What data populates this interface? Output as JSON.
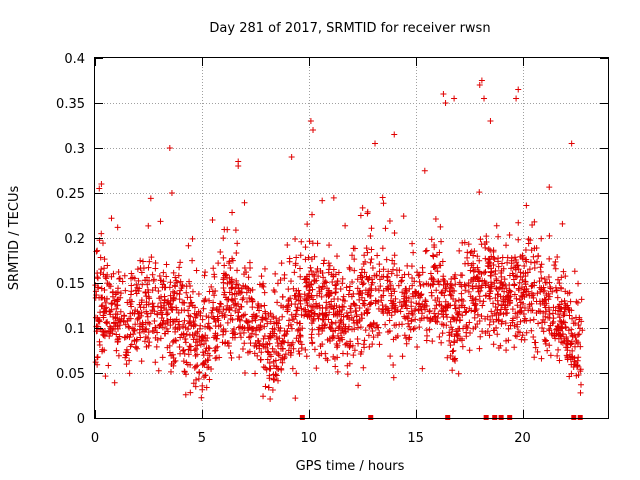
{
  "chart_data": {
    "type": "scatter",
    "title": "Day 281 of 2017, SRMTID for receiver rwsn",
    "xlabel": "GPS time / hours",
    "ylabel": "SRMTID / TECUs",
    "xlim": [
      0,
      24
    ],
    "ylim": [
      0,
      0.4
    ],
    "xticks": [
      0,
      5,
      10,
      15,
      20
    ],
    "xtick_labels": [
      "0",
      "5",
      "10",
      "15",
      "20"
    ],
    "yticks": [
      0,
      0.05,
      0.1,
      0.15,
      0.2,
      0.25,
      0.3,
      0.35,
      0.4
    ],
    "ytick_labels": [
      "0",
      "0.05",
      "0.1",
      "0.15",
      "0.2",
      "0.25",
      "0.3",
      "0.35",
      "0.4"
    ],
    "grid": true,
    "marker": "plus",
    "color": "#e00000",
    "series": [
      {
        "name": "SRMTID",
        "description": "Dense scatter of SRMTID values (~2400 points). Baseline profile, spread and notable outliers below; points are generated deterministically from these.",
        "n_points": 2400,
        "x_range": [
          0.0,
          22.8
        ],
        "baseline_profile": [
          [
            0,
            0.12
          ],
          [
            1,
            0.11
          ],
          [
            2,
            0.12
          ],
          [
            3,
            0.12
          ],
          [
            4,
            0.11
          ],
          [
            5,
            0.075
          ],
          [
            6,
            0.13
          ],
          [
            7,
            0.12
          ],
          [
            8,
            0.08
          ],
          [
            9,
            0.1
          ],
          [
            10,
            0.13
          ],
          [
            11,
            0.12
          ],
          [
            12,
            0.11
          ],
          [
            13,
            0.14
          ],
          [
            14,
            0.13
          ],
          [
            15,
            0.13
          ],
          [
            16,
            0.14
          ],
          [
            17,
            0.11
          ],
          [
            18,
            0.15
          ],
          [
            19,
            0.13
          ],
          [
            20,
            0.14
          ],
          [
            21,
            0.12
          ],
          [
            22,
            0.1
          ],
          [
            22.8,
            0.08
          ]
        ],
        "spread": 0.04,
        "outliers": [
          {
            "x": 0.3,
            "y": 0.26
          },
          {
            "x": 0.2,
            "y": 0.255
          },
          {
            "x": 3.5,
            "y": 0.3
          },
          {
            "x": 3.6,
            "y": 0.25
          },
          {
            "x": 6.7,
            "y": 0.285
          },
          {
            "x": 6.7,
            "y": 0.28
          },
          {
            "x": 9.2,
            "y": 0.29
          },
          {
            "x": 10.1,
            "y": 0.33
          },
          {
            "x": 10.2,
            "y": 0.32
          },
          {
            "x": 13.1,
            "y": 0.305
          },
          {
            "x": 14.0,
            "y": 0.315
          },
          {
            "x": 16.3,
            "y": 0.36
          },
          {
            "x": 16.4,
            "y": 0.35
          },
          {
            "x": 16.8,
            "y": 0.355
          },
          {
            "x": 18.1,
            "y": 0.375
          },
          {
            "x": 18.0,
            "y": 0.37
          },
          {
            "x": 18.2,
            "y": 0.355
          },
          {
            "x": 18.5,
            "y": 0.33
          },
          {
            "x": 19.8,
            "y": 0.365
          },
          {
            "x": 19.7,
            "y": 0.355
          },
          {
            "x": 22.3,
            "y": 0.305
          }
        ],
        "zero_markers_x": [
          9.7,
          12.9,
          16.5,
          18.3,
          18.7,
          19.0,
          19.4,
          22.4,
          22.7
        ]
      }
    ]
  }
}
